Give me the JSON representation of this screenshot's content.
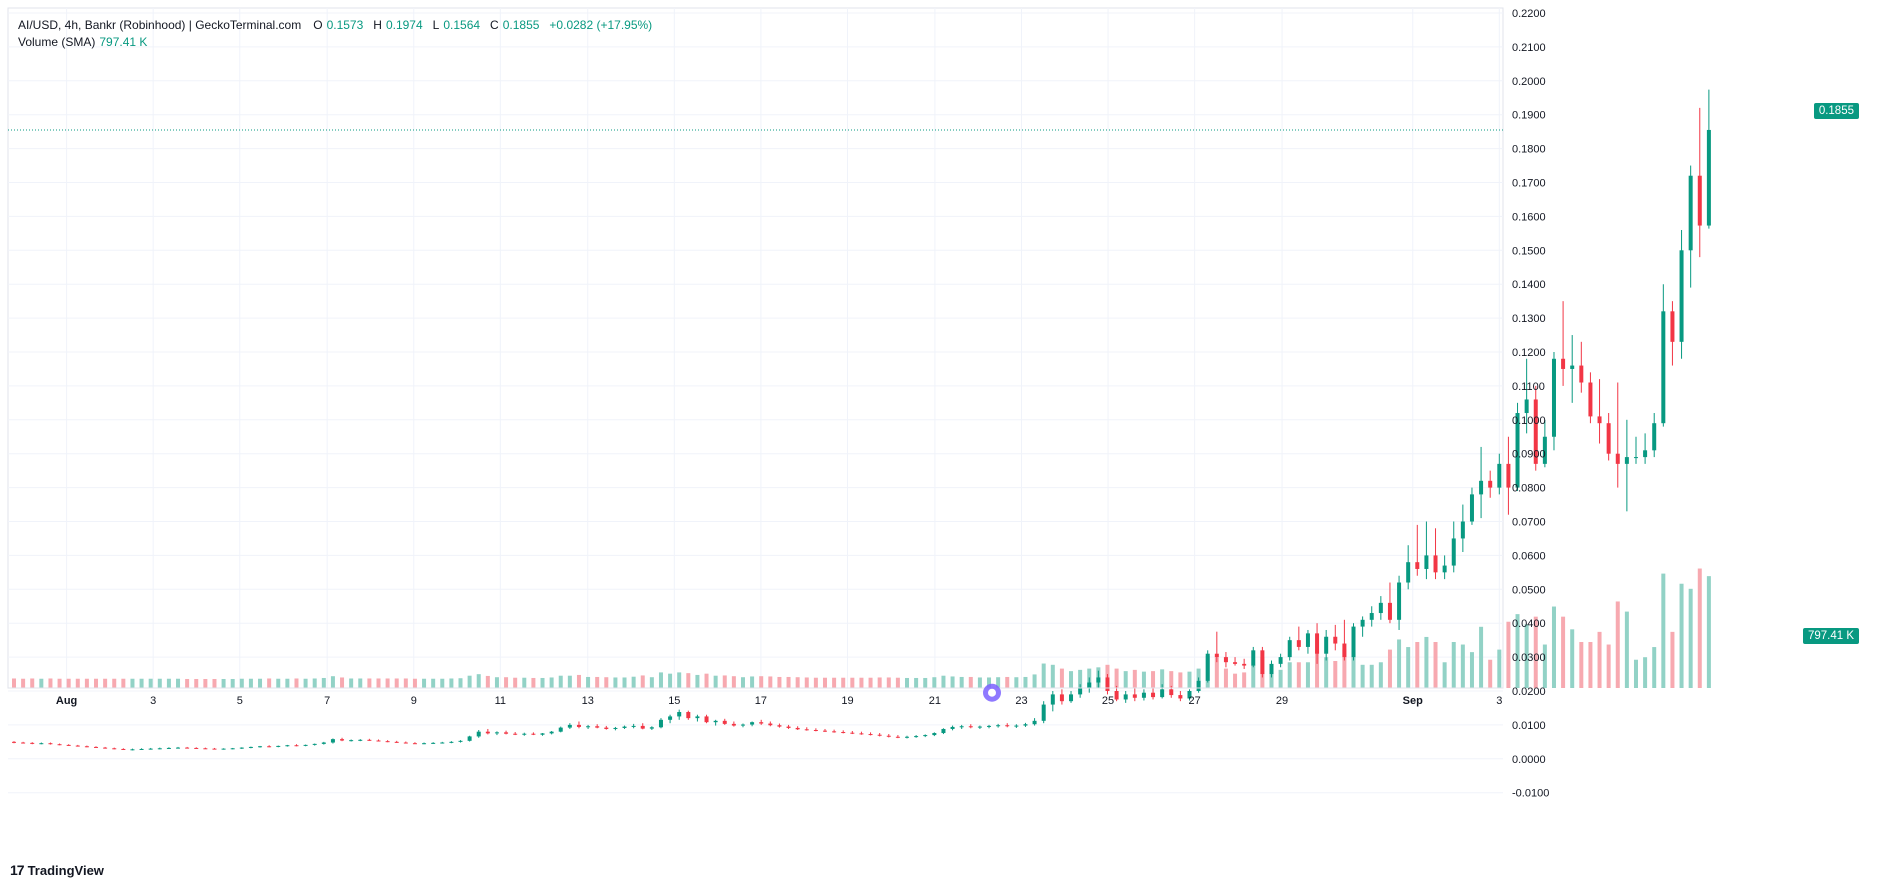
{
  "legend": {
    "title": "AI/USD, 4h, Bankr (Robinhood) | GeckoTerminal.com",
    "o_label": "O",
    "o_value": "0.1573",
    "h_label": "H",
    "h_value": "0.1974",
    "l_label": "L",
    "l_value": "0.1564",
    "c_label": "C",
    "c_value": "0.1855",
    "change": "+0.0282 (+17.95%)",
    "volume_label": "Volume (SMA)",
    "volume_value": "797.41 K"
  },
  "price_tag": "0.1855",
  "volume_tag": "797.41 K",
  "brand": {
    "logo": "17",
    "name": "TradingView"
  },
  "colors": {
    "up": "#089981",
    "down": "#f23645",
    "vol_up": "#92d2c6",
    "vol_down": "#f7a9b0",
    "grid": "#f0f3fa"
  },
  "chart_data": {
    "type": "candlestick",
    "ylim": [
      -0.015,
      0.22
    ],
    "y_ticks": [
      "0.2200",
      "0.2100",
      "0.2000",
      "0.1900",
      "0.1800",
      "0.1700",
      "0.1600",
      "0.1500",
      "0.1400",
      "0.1300",
      "0.1200",
      "0.1100",
      "0.1000",
      "0.0900",
      "0.0800",
      "0.0700",
      "0.0600",
      "0.0500",
      "0.0400",
      "0.0300",
      "0.0200",
      "0.0100",
      "0.0000",
      "-0.0100"
    ],
    "x_ticks": [
      "Aug",
      "3",
      "5",
      "7",
      "9",
      "11",
      "13",
      "15",
      "17",
      "19",
      "21",
      "23",
      "25",
      "27",
      "29",
      "Sep",
      "3"
    ],
    "last_close": 0.1855,
    "candles": [
      {
        "o": 0.005,
        "h": 0.0052,
        "l": 0.0046,
        "c": 0.0048
      },
      {
        "o": 0.0048,
        "h": 0.005,
        "l": 0.0045,
        "c": 0.0047
      },
      {
        "o": 0.0047,
        "h": 0.0049,
        "l": 0.0043,
        "c": 0.0045
      },
      {
        "o": 0.0045,
        "h": 0.0048,
        "l": 0.0043,
        "c": 0.0046
      },
      {
        "o": 0.0046,
        "h": 0.0048,
        "l": 0.0042,
        "c": 0.0043
      },
      {
        "o": 0.0043,
        "h": 0.0045,
        "l": 0.004,
        "c": 0.0041
      },
      {
        "o": 0.0041,
        "h": 0.0043,
        "l": 0.0038,
        "c": 0.0039
      },
      {
        "o": 0.0039,
        "h": 0.0041,
        "l": 0.0036,
        "c": 0.0037
      },
      {
        "o": 0.0037,
        "h": 0.0039,
        "l": 0.0034,
        "c": 0.0035
      },
      {
        "o": 0.0035,
        "h": 0.0037,
        "l": 0.0032,
        "c": 0.0033
      },
      {
        "o": 0.0033,
        "h": 0.0035,
        "l": 0.003,
        "c": 0.0031
      },
      {
        "o": 0.0031,
        "h": 0.0033,
        "l": 0.0028,
        "c": 0.0029
      },
      {
        "o": 0.0029,
        "h": 0.0031,
        "l": 0.0026,
        "c": 0.0027
      },
      {
        "o": 0.0027,
        "h": 0.003,
        "l": 0.0025,
        "c": 0.0028
      },
      {
        "o": 0.0028,
        "h": 0.0031,
        "l": 0.0026,
        "c": 0.0029
      },
      {
        "o": 0.0029,
        "h": 0.0032,
        "l": 0.0027,
        "c": 0.003
      },
      {
        "o": 0.003,
        "h": 0.0033,
        "l": 0.0028,
        "c": 0.0031
      },
      {
        "o": 0.0031,
        "h": 0.0034,
        "l": 0.0029,
        "c": 0.0032
      },
      {
        "o": 0.0032,
        "h": 0.0035,
        "l": 0.003,
        "c": 0.0033
      },
      {
        "o": 0.0033,
        "h": 0.0035,
        "l": 0.0031,
        "c": 0.0032
      },
      {
        "o": 0.0032,
        "h": 0.0034,
        "l": 0.003,
        "c": 0.0031
      },
      {
        "o": 0.0031,
        "h": 0.0033,
        "l": 0.0029,
        "c": 0.003
      },
      {
        "o": 0.003,
        "h": 0.0032,
        "l": 0.0028,
        "c": 0.0029
      },
      {
        "o": 0.0029,
        "h": 0.0031,
        "l": 0.0027,
        "c": 0.003
      },
      {
        "o": 0.003,
        "h": 0.0032,
        "l": 0.0028,
        "c": 0.0031
      },
      {
        "o": 0.0031,
        "h": 0.0034,
        "l": 0.0029,
        "c": 0.0033
      },
      {
        "o": 0.0033,
        "h": 0.0036,
        "l": 0.0031,
        "c": 0.0035
      },
      {
        "o": 0.0035,
        "h": 0.0038,
        "l": 0.0033,
        "c": 0.0037
      },
      {
        "o": 0.0037,
        "h": 0.004,
        "l": 0.0034,
        "c": 0.0036
      },
      {
        "o": 0.0036,
        "h": 0.0039,
        "l": 0.0034,
        "c": 0.0038
      },
      {
        "o": 0.0038,
        "h": 0.0041,
        "l": 0.0036,
        "c": 0.004
      },
      {
        "o": 0.004,
        "h": 0.0043,
        "l": 0.0037,
        "c": 0.0039
      },
      {
        "o": 0.0039,
        "h": 0.0042,
        "l": 0.0037,
        "c": 0.0041
      },
      {
        "o": 0.0041,
        "h": 0.0045,
        "l": 0.0039,
        "c": 0.0044
      },
      {
        "o": 0.0044,
        "h": 0.005,
        "l": 0.0042,
        "c": 0.0048
      },
      {
        "o": 0.0048,
        "h": 0.006,
        "l": 0.0045,
        "c": 0.0058
      },
      {
        "o": 0.0058,
        "h": 0.0062,
        "l": 0.0052,
        "c": 0.0054
      },
      {
        "o": 0.0054,
        "h": 0.0057,
        "l": 0.0051,
        "c": 0.0055
      },
      {
        "o": 0.0055,
        "h": 0.0058,
        "l": 0.0052,
        "c": 0.0056
      },
      {
        "o": 0.0056,
        "h": 0.0059,
        "l": 0.0053,
        "c": 0.0054
      },
      {
        "o": 0.0054,
        "h": 0.0057,
        "l": 0.0051,
        "c": 0.0052
      },
      {
        "o": 0.0052,
        "h": 0.0055,
        "l": 0.0049,
        "c": 0.005
      },
      {
        "o": 0.005,
        "h": 0.0053,
        "l": 0.0047,
        "c": 0.0048
      },
      {
        "o": 0.0048,
        "h": 0.0051,
        "l": 0.0045,
        "c": 0.0046
      },
      {
        "o": 0.0046,
        "h": 0.0049,
        "l": 0.0044,
        "c": 0.0045
      },
      {
        "o": 0.0045,
        "h": 0.0048,
        "l": 0.0043,
        "c": 0.0046
      },
      {
        "o": 0.0046,
        "h": 0.0049,
        "l": 0.0044,
        "c": 0.0047
      },
      {
        "o": 0.0047,
        "h": 0.005,
        "l": 0.0045,
        "c": 0.0048
      },
      {
        "o": 0.0048,
        "h": 0.0052,
        "l": 0.0046,
        "c": 0.005
      },
      {
        "o": 0.005,
        "h": 0.0055,
        "l": 0.0048,
        "c": 0.0053
      },
      {
        "o": 0.0053,
        "h": 0.0068,
        "l": 0.0051,
        "c": 0.0066
      },
      {
        "o": 0.0066,
        "h": 0.0085,
        "l": 0.0062,
        "c": 0.008
      },
      {
        "o": 0.008,
        "h": 0.0088,
        "l": 0.0072,
        "c": 0.0075
      },
      {
        "o": 0.0075,
        "h": 0.0081,
        "l": 0.007,
        "c": 0.0078
      },
      {
        "o": 0.0078,
        "h": 0.0083,
        "l": 0.0072,
        "c": 0.0074
      },
      {
        "o": 0.0074,
        "h": 0.0079,
        "l": 0.007,
        "c": 0.0072
      },
      {
        "o": 0.0072,
        "h": 0.0077,
        "l": 0.0068,
        "c": 0.0074
      },
      {
        "o": 0.0074,
        "h": 0.0078,
        "l": 0.007,
        "c": 0.0071
      },
      {
        "o": 0.0071,
        "h": 0.0076,
        "l": 0.0068,
        "c": 0.0075
      },
      {
        "o": 0.0075,
        "h": 0.0082,
        "l": 0.0072,
        "c": 0.008
      },
      {
        "o": 0.008,
        "h": 0.0095,
        "l": 0.0078,
        "c": 0.0092
      },
      {
        "o": 0.0092,
        "h": 0.0105,
        "l": 0.0088,
        "c": 0.01
      },
      {
        "o": 0.01,
        "h": 0.011,
        "l": 0.009,
        "c": 0.0094
      },
      {
        "o": 0.0094,
        "h": 0.01,
        "l": 0.0088,
        "c": 0.0096
      },
      {
        "o": 0.0096,
        "h": 0.0102,
        "l": 0.009,
        "c": 0.0092
      },
      {
        "o": 0.0092,
        "h": 0.0097,
        "l": 0.0086,
        "c": 0.0088
      },
      {
        "o": 0.0088,
        "h": 0.0094,
        "l": 0.0084,
        "c": 0.0091
      },
      {
        "o": 0.0091,
        "h": 0.0098,
        "l": 0.0088,
        "c": 0.0095
      },
      {
        "o": 0.0095,
        "h": 0.0103,
        "l": 0.009,
        "c": 0.0097
      },
      {
        "o": 0.0097,
        "h": 0.0105,
        "l": 0.0087,
        "c": 0.0089
      },
      {
        "o": 0.0089,
        "h": 0.0096,
        "l": 0.0085,
        "c": 0.0093
      },
      {
        "o": 0.0093,
        "h": 0.012,
        "l": 0.009,
        "c": 0.0115
      },
      {
        "o": 0.0115,
        "h": 0.013,
        "l": 0.0105,
        "c": 0.0125
      },
      {
        "o": 0.0125,
        "h": 0.0145,
        "l": 0.0115,
        "c": 0.0138
      },
      {
        "o": 0.0138,
        "h": 0.0142,
        "l": 0.0115,
        "c": 0.012
      },
      {
        "o": 0.012,
        "h": 0.013,
        "l": 0.011,
        "c": 0.0125
      },
      {
        "o": 0.0125,
        "h": 0.013,
        "l": 0.0105,
        "c": 0.0108
      },
      {
        "o": 0.0108,
        "h": 0.0115,
        "l": 0.0098,
        "c": 0.0112
      },
      {
        "o": 0.0112,
        "h": 0.0118,
        "l": 0.01,
        "c": 0.0103
      },
      {
        "o": 0.0103,
        "h": 0.011,
        "l": 0.0095,
        "c": 0.0098
      },
      {
        "o": 0.0098,
        "h": 0.0104,
        "l": 0.0093,
        "c": 0.0101
      },
      {
        "o": 0.0101,
        "h": 0.011,
        "l": 0.0096,
        "c": 0.0108
      },
      {
        "o": 0.0108,
        "h": 0.0115,
        "l": 0.01,
        "c": 0.0104
      },
      {
        "o": 0.0104,
        "h": 0.011,
        "l": 0.0096,
        "c": 0.0099
      },
      {
        "o": 0.0099,
        "h": 0.0104,
        "l": 0.0092,
        "c": 0.0095
      },
      {
        "o": 0.0095,
        "h": 0.01,
        "l": 0.0088,
        "c": 0.0091
      },
      {
        "o": 0.0091,
        "h": 0.0096,
        "l": 0.0085,
        "c": 0.0087
      },
      {
        "o": 0.0087,
        "h": 0.0093,
        "l": 0.0083,
        "c": 0.0085
      },
      {
        "o": 0.0085,
        "h": 0.009,
        "l": 0.0081,
        "c": 0.0083
      },
      {
        "o": 0.0083,
        "h": 0.0088,
        "l": 0.0079,
        "c": 0.0081
      },
      {
        "o": 0.0081,
        "h": 0.0086,
        "l": 0.0077,
        "c": 0.0079
      },
      {
        "o": 0.0079,
        "h": 0.0084,
        "l": 0.0075,
        "c": 0.0077
      },
      {
        "o": 0.0077,
        "h": 0.0082,
        "l": 0.0073,
        "c": 0.0075
      },
      {
        "o": 0.0075,
        "h": 0.008,
        "l": 0.0071,
        "c": 0.0073
      },
      {
        "o": 0.0073,
        "h": 0.0078,
        "l": 0.0069,
        "c": 0.0071
      },
      {
        "o": 0.0071,
        "h": 0.0076,
        "l": 0.0066,
        "c": 0.0068
      },
      {
        "o": 0.0068,
        "h": 0.0073,
        "l": 0.0063,
        "c": 0.0065
      },
      {
        "o": 0.0065,
        "h": 0.007,
        "l": 0.0061,
        "c": 0.0063
      },
      {
        "o": 0.0063,
        "h": 0.0068,
        "l": 0.006,
        "c": 0.0065
      },
      {
        "o": 0.0065,
        "h": 0.007,
        "l": 0.0062,
        "c": 0.0067
      },
      {
        "o": 0.0067,
        "h": 0.0072,
        "l": 0.0064,
        "c": 0.007
      },
      {
        "o": 0.007,
        "h": 0.0078,
        "l": 0.0067,
        "c": 0.0076
      },
      {
        "o": 0.0076,
        "h": 0.009,
        "l": 0.0073,
        "c": 0.0088
      },
      {
        "o": 0.0088,
        "h": 0.0098,
        "l": 0.0084,
        "c": 0.0094
      },
      {
        "o": 0.0094,
        "h": 0.01,
        "l": 0.0088,
        "c": 0.0096
      },
      {
        "o": 0.0096,
        "h": 0.0102,
        "l": 0.009,
        "c": 0.0093
      },
      {
        "o": 0.0093,
        "h": 0.0098,
        "l": 0.0088,
        "c": 0.0095
      },
      {
        "o": 0.0095,
        "h": 0.01,
        "l": 0.009,
        "c": 0.0097
      },
      {
        "o": 0.0097,
        "h": 0.0103,
        "l": 0.0092,
        "c": 0.0099
      },
      {
        "o": 0.0099,
        "h": 0.0105,
        "l": 0.0093,
        "c": 0.0096
      },
      {
        "o": 0.0096,
        "h": 0.0102,
        "l": 0.0091,
        "c": 0.0098
      },
      {
        "o": 0.0098,
        "h": 0.0106,
        "l": 0.0094,
        "c": 0.0102
      },
      {
        "o": 0.0102,
        "h": 0.012,
        "l": 0.0098,
        "c": 0.0112
      },
      {
        "o": 0.0112,
        "h": 0.017,
        "l": 0.0105,
        "c": 0.016
      },
      {
        "o": 0.016,
        "h": 0.02,
        "l": 0.014,
        "c": 0.019
      },
      {
        "o": 0.019,
        "h": 0.0205,
        "l": 0.016,
        "c": 0.017
      },
      {
        "o": 0.017,
        "h": 0.02,
        "l": 0.0165,
        "c": 0.019
      },
      {
        "o": 0.019,
        "h": 0.022,
        "l": 0.018,
        "c": 0.021
      },
      {
        "o": 0.021,
        "h": 0.024,
        "l": 0.0195,
        "c": 0.0225
      },
      {
        "o": 0.0225,
        "h": 0.026,
        "l": 0.021,
        "c": 0.024
      },
      {
        "o": 0.024,
        "h": 0.025,
        "l": 0.019,
        "c": 0.02
      },
      {
        "o": 0.02,
        "h": 0.0215,
        "l": 0.017,
        "c": 0.0175
      },
      {
        "o": 0.0175,
        "h": 0.02,
        "l": 0.0165,
        "c": 0.019
      },
      {
        "o": 0.019,
        "h": 0.021,
        "l": 0.017,
        "c": 0.018
      },
      {
        "o": 0.018,
        "h": 0.0205,
        "l": 0.0172,
        "c": 0.0195
      },
      {
        "o": 0.0195,
        "h": 0.021,
        "l": 0.0175,
        "c": 0.0182
      },
      {
        "o": 0.0182,
        "h": 0.022,
        "l": 0.0178,
        "c": 0.0205
      },
      {
        "o": 0.0205,
        "h": 0.0215,
        "l": 0.018,
        "c": 0.0188
      },
      {
        "o": 0.0188,
        "h": 0.02,
        "l": 0.017,
        "c": 0.0178
      },
      {
        "o": 0.0178,
        "h": 0.0205,
        "l": 0.0172,
        "c": 0.02
      },
      {
        "o": 0.02,
        "h": 0.024,
        "l": 0.0195,
        "c": 0.023
      },
      {
        "o": 0.023,
        "h": 0.032,
        "l": 0.0225,
        "c": 0.031
      },
      {
        "o": 0.031,
        "h": 0.0375,
        "l": 0.0285,
        "c": 0.03
      },
      {
        "o": 0.03,
        "h": 0.0315,
        "l": 0.027,
        "c": 0.0285
      },
      {
        "o": 0.0285,
        "h": 0.03,
        "l": 0.0275,
        "c": 0.028
      },
      {
        "o": 0.028,
        "h": 0.0295,
        "l": 0.0265,
        "c": 0.0275
      },
      {
        "o": 0.0275,
        "h": 0.033,
        "l": 0.027,
        "c": 0.032
      },
      {
        "o": 0.032,
        "h": 0.033,
        "l": 0.024,
        "c": 0.025
      },
      {
        "o": 0.025,
        "h": 0.029,
        "l": 0.024,
        "c": 0.028
      },
      {
        "o": 0.028,
        "h": 0.031,
        "l": 0.027,
        "c": 0.03
      },
      {
        "o": 0.03,
        "h": 0.036,
        "l": 0.029,
        "c": 0.035
      },
      {
        "o": 0.035,
        "h": 0.039,
        "l": 0.032,
        "c": 0.033
      },
      {
        "o": 0.033,
        "h": 0.038,
        "l": 0.031,
        "c": 0.037
      },
      {
        "o": 0.037,
        "h": 0.04,
        "l": 0.028,
        "c": 0.031
      },
      {
        "o": 0.031,
        "h": 0.038,
        "l": 0.029,
        "c": 0.036
      },
      {
        "o": 0.036,
        "h": 0.0395,
        "l": 0.032,
        "c": 0.034
      },
      {
        "o": 0.034,
        "h": 0.041,
        "l": 0.029,
        "c": 0.03
      },
      {
        "o": 0.03,
        "h": 0.04,
        "l": 0.029,
        "c": 0.039
      },
      {
        "o": 0.039,
        "h": 0.042,
        "l": 0.036,
        "c": 0.041
      },
      {
        "o": 0.041,
        "h": 0.045,
        "l": 0.039,
        "c": 0.043
      },
      {
        "o": 0.043,
        "h": 0.048,
        "l": 0.041,
        "c": 0.046
      },
      {
        "o": 0.046,
        "h": 0.052,
        "l": 0.04,
        "c": 0.041
      },
      {
        "o": 0.041,
        "h": 0.054,
        "l": 0.038,
        "c": 0.052
      },
      {
        "o": 0.052,
        "h": 0.063,
        "l": 0.05,
        "c": 0.058
      },
      {
        "o": 0.058,
        "h": 0.069,
        "l": 0.054,
        "c": 0.056
      },
      {
        "o": 0.056,
        "h": 0.07,
        "l": 0.053,
        "c": 0.06
      },
      {
        "o": 0.06,
        "h": 0.068,
        "l": 0.053,
        "c": 0.055
      },
      {
        "o": 0.055,
        "h": 0.06,
        "l": 0.053,
        "c": 0.057
      },
      {
        "o": 0.057,
        "h": 0.07,
        "l": 0.055,
        "c": 0.065
      },
      {
        "o": 0.065,
        "h": 0.075,
        "l": 0.061,
        "c": 0.07
      },
      {
        "o": 0.07,
        "h": 0.08,
        "l": 0.069,
        "c": 0.078
      },
      {
        "o": 0.078,
        "h": 0.092,
        "l": 0.071,
        "c": 0.082
      },
      {
        "o": 0.082,
        "h": 0.085,
        "l": 0.077,
        "c": 0.08
      },
      {
        "o": 0.08,
        "h": 0.09,
        "l": 0.078,
        "c": 0.087
      },
      {
        "o": 0.087,
        "h": 0.095,
        "l": 0.072,
        "c": 0.08
      },
      {
        "o": 0.08,
        "h": 0.105,
        "l": 0.079,
        "c": 0.102
      },
      {
        "o": 0.102,
        "h": 0.118,
        "l": 0.096,
        "c": 0.106
      },
      {
        "o": 0.106,
        "h": 0.11,
        "l": 0.085,
        "c": 0.087
      },
      {
        "o": 0.087,
        "h": 0.1,
        "l": 0.086,
        "c": 0.095
      },
      {
        "o": 0.095,
        "h": 0.12,
        "l": 0.091,
        "c": 0.118
      },
      {
        "o": 0.118,
        "h": 0.135,
        "l": 0.11,
        "c": 0.115
      },
      {
        "o": 0.115,
        "h": 0.125,
        "l": 0.105,
        "c": 0.116
      },
      {
        "o": 0.116,
        "h": 0.123,
        "l": 0.108,
        "c": 0.111
      },
      {
        "o": 0.111,
        "h": 0.114,
        "l": 0.099,
        "c": 0.101
      },
      {
        "o": 0.101,
        "h": 0.112,
        "l": 0.093,
        "c": 0.099
      },
      {
        "o": 0.099,
        "h": 0.102,
        "l": 0.088,
        "c": 0.09
      },
      {
        "o": 0.09,
        "h": 0.111,
        "l": 0.08,
        "c": 0.087
      },
      {
        "o": 0.087,
        "h": 0.1,
        "l": 0.073,
        "c": 0.089
      },
      {
        "o": 0.089,
        "h": 0.095,
        "l": 0.087,
        "c": 0.089
      },
      {
        "o": 0.089,
        "h": 0.096,
        "l": 0.087,
        "c": 0.091
      },
      {
        "o": 0.091,
        "h": 0.102,
        "l": 0.089,
        "c": 0.099
      },
      {
        "o": 0.099,
        "h": 0.14,
        "l": 0.098,
        "c": 0.132
      },
      {
        "o": 0.132,
        "h": 0.135,
        "l": 0.116,
        "c": 0.123
      },
      {
        "o": 0.123,
        "h": 0.156,
        "l": 0.118,
        "c": 0.15
      },
      {
        "o": 0.15,
        "h": 0.175,
        "l": 0.139,
        "c": 0.172
      },
      {
        "o": 0.172,
        "h": 0.192,
        "l": 0.148,
        "c": 0.1573
      },
      {
        "o": 0.1573,
        "h": 0.1974,
        "l": 0.1564,
        "c": 0.1855
      }
    ],
    "volume_max": 0.375
  }
}
